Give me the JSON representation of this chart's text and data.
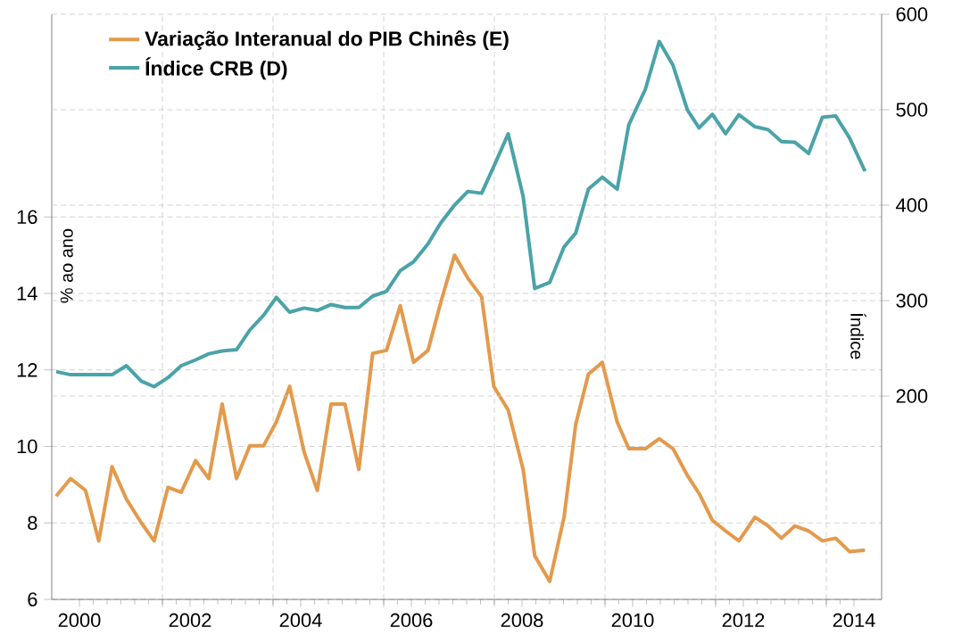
{
  "chart_data": {
    "type": "line",
    "xlim": [
      2000,
      2015
    ],
    "xticks": [
      {
        "value": 2000.5,
        "label": "2000"
      },
      {
        "value": 2002.5,
        "label": "2002"
      },
      {
        "value": 2004.5,
        "label": "2004"
      },
      {
        "value": 2006.5,
        "label": "2006"
      },
      {
        "value": 2008.5,
        "label": "2008"
      },
      {
        "value": 2010.5,
        "label": "2010"
      },
      {
        "value": 2012.5,
        "label": "2012"
      },
      {
        "value": 2014.5,
        "label": "2014"
      },
      {
        "value": 2002,
        "label": null
      },
      {
        "value": 2004,
        "label": null
      },
      {
        "value": 2006,
        "label": null
      },
      {
        "value": 2008,
        "label": null
      },
      {
        "value": 2010,
        "label": null
      },
      {
        "value": 2012,
        "label": null
      },
      {
        "value": 2014,
        "label": null
      }
    ],
    "ylim": [
      6,
      21.3
    ],
    "yticks": [
      6,
      8,
      10,
      12,
      14,
      16
    ],
    "y2lim": [
      -13,
      600
    ],
    "y2ticks": [
      200,
      300,
      400,
      500,
      600
    ],
    "ylabel": "% ao ano",
    "y2label": "Índice",
    "grid": true,
    "legend": "top left",
    "marker": "none",
    "line_style": "solid",
    "series": [
      {
        "name": "Variação Interanual do PIB Chinês (E)",
        "color": "#e39a4c",
        "axis": "y",
        "x": [
          2000.08,
          2000.34,
          2000.61,
          2000.85,
          2001.09,
          2001.35,
          2001.62,
          2001.85,
          2002.1,
          2002.34,
          2002.6,
          2002.84,
          2003.08,
          2003.34,
          2003.58,
          2003.83,
          2004.06,
          2004.3,
          2004.56,
          2004.8,
          2005.05,
          2005.3,
          2005.55,
          2005.8,
          2006.05,
          2006.3,
          2006.54,
          2006.8,
          2007.03,
          2007.28,
          2007.52,
          2007.77,
          2007.99,
          2008.25,
          2008.52,
          2008.73,
          2009.0,
          2009.26,
          2009.47,
          2009.7,
          2009.95,
          2010.22,
          2010.43,
          2010.73,
          2010.98,
          2011.23,
          2011.49,
          2011.7,
          2011.94,
          2012.18,
          2012.42,
          2012.71,
          2012.95,
          2013.19,
          2013.43,
          2013.68,
          2013.93,
          2014.17,
          2014.42,
          2014.7
        ],
        "values": [
          8.7,
          9.16,
          8.85,
          7.53,
          9.47,
          8.62,
          8.0,
          7.53,
          8.93,
          8.8,
          9.63,
          9.16,
          11.11,
          9.16,
          10.02,
          10.02,
          10.64,
          11.57,
          9.86,
          8.85,
          11.11,
          11.11,
          9.4,
          12.43,
          12.51,
          13.68,
          12.2,
          12.51,
          13.76,
          15.0,
          14.4,
          13.91,
          11.57,
          10.95,
          9.4,
          7.14,
          6.47,
          8.15,
          10.57,
          11.89,
          12.2,
          10.64,
          9.94,
          9.94,
          10.2,
          9.94,
          9.24,
          8.77,
          8.07,
          7.79,
          7.53,
          8.15,
          7.92,
          7.6,
          7.92,
          7.79,
          7.53,
          7.6,
          7.25,
          7.29
        ]
      },
      {
        "name": "Índice CRB (D)",
        "color": "#4aa3a8",
        "axis": "y2",
        "x": [
          2000.08,
          2000.34,
          2000.61,
          2000.85,
          2001.09,
          2001.35,
          2001.62,
          2001.85,
          2002.1,
          2002.34,
          2002.6,
          2002.84,
          2003.08,
          2003.34,
          2003.58,
          2003.83,
          2004.06,
          2004.3,
          2004.56,
          2004.8,
          2005.05,
          2005.3,
          2005.55,
          2005.8,
          2006.05,
          2006.3,
          2006.54,
          2006.8,
          2007.03,
          2007.28,
          2007.52,
          2007.77,
          2007.99,
          2008.25,
          2008.52,
          2008.73,
          2009.0,
          2009.26,
          2009.47,
          2009.7,
          2009.95,
          2010.22,
          2010.43,
          2010.73,
          2010.98,
          2011.23,
          2011.49,
          2011.7,
          2011.94,
          2012.18,
          2012.42,
          2012.71,
          2012.95,
          2013.19,
          2013.43,
          2013.68,
          2013.93,
          2014.17,
          2014.42,
          2014.7
        ],
        "values": [
          225.6,
          222.4,
          222.4,
          222.4,
          222.4,
          231.8,
          215.6,
          209.9,
          219.3,
          231.8,
          237.9,
          244.3,
          247.3,
          248.6,
          269.2,
          284.7,
          303.4,
          287.9,
          292.2,
          289.7,
          295.9,
          292.8,
          292.8,
          304.7,
          309.7,
          331.4,
          340.7,
          359.4,
          381.3,
          400.0,
          414.4,
          412.5,
          440.6,
          474.8,
          409.3,
          312.7,
          319.0,
          356.4,
          370.7,
          416.8,
          429.3,
          416.8,
          484.1,
          521.5,
          571.4,
          546.4,
          499.6,
          480.9,
          495.3,
          474.8,
          494.7,
          482.2,
          479.1,
          466.7,
          466.0,
          454.2,
          492.2,
          493.5,
          470.5,
          435.5
        ]
      }
    ]
  }
}
